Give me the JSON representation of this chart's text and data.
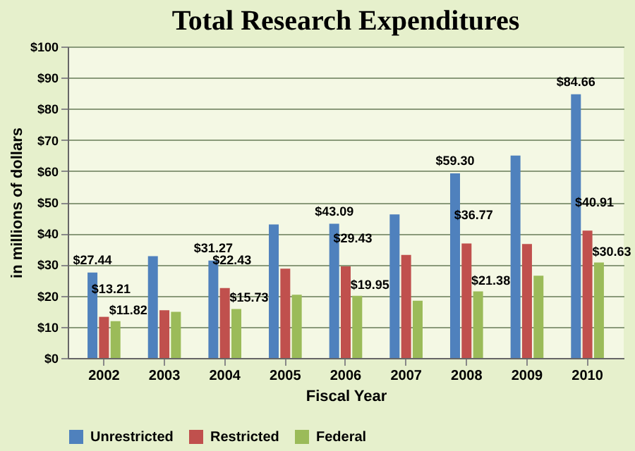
{
  "chart_data": {
    "type": "bar",
    "title": "Total Research Expenditures",
    "xlabel": "Fiscal Year",
    "ylabel": "in millions of dollars",
    "categories": [
      "2002",
      "2003",
      "2004",
      "2005",
      "2006",
      "2007",
      "2008",
      "2009",
      "2010"
    ],
    "series": [
      {
        "name": "Unrestricted",
        "color": "#4f81bd",
        "values": [
          27.44,
          32.7,
          31.27,
          42.9,
          43.09,
          46.1,
          59.3,
          65.0,
          84.66
        ],
        "value_labels": [
          "$27.44",
          null,
          "$31.27",
          null,
          "$43.09",
          null,
          "$59.30",
          null,
          "$84.66"
        ]
      },
      {
        "name": "Restricted",
        "color": "#c0504d",
        "values": [
          13.21,
          15.3,
          22.43,
          28.7,
          29.43,
          33.1,
          36.77,
          36.6,
          40.91
        ],
        "value_labels": [
          "$13.21",
          null,
          "$22.43",
          null,
          "$29.43",
          null,
          "$36.77",
          null,
          "$40.91"
        ]
      },
      {
        "name": "Federal",
        "color": "#9bbb59",
        "values": [
          11.82,
          14.8,
          15.73,
          20.3,
          19.95,
          18.4,
          21.38,
          26.4,
          30.63
        ],
        "value_labels": [
          "$11.82",
          null,
          "$15.73",
          null,
          "$19.95",
          null,
          "$21.38",
          null,
          "$30.63"
        ]
      }
    ],
    "ylim": [
      0,
      100
    ],
    "yticks": [
      {
        "value": 0,
        "label": "$0"
      },
      {
        "value": 10,
        "label": "$10"
      },
      {
        "value": 20,
        "label": "$20"
      },
      {
        "value": 30,
        "label": "$30"
      },
      {
        "value": 40,
        "label": "$40"
      },
      {
        "value": 50,
        "label": "$50"
      },
      {
        "value": 60,
        "label": "$60"
      },
      {
        "value": 70,
        "label": "$70"
      },
      {
        "value": 80,
        "label": "$80"
      },
      {
        "value": 90,
        "label": "$90"
      },
      {
        "value": 100,
        "label": "$100"
      }
    ],
    "grid": "y",
    "legend": "bottom"
  }
}
